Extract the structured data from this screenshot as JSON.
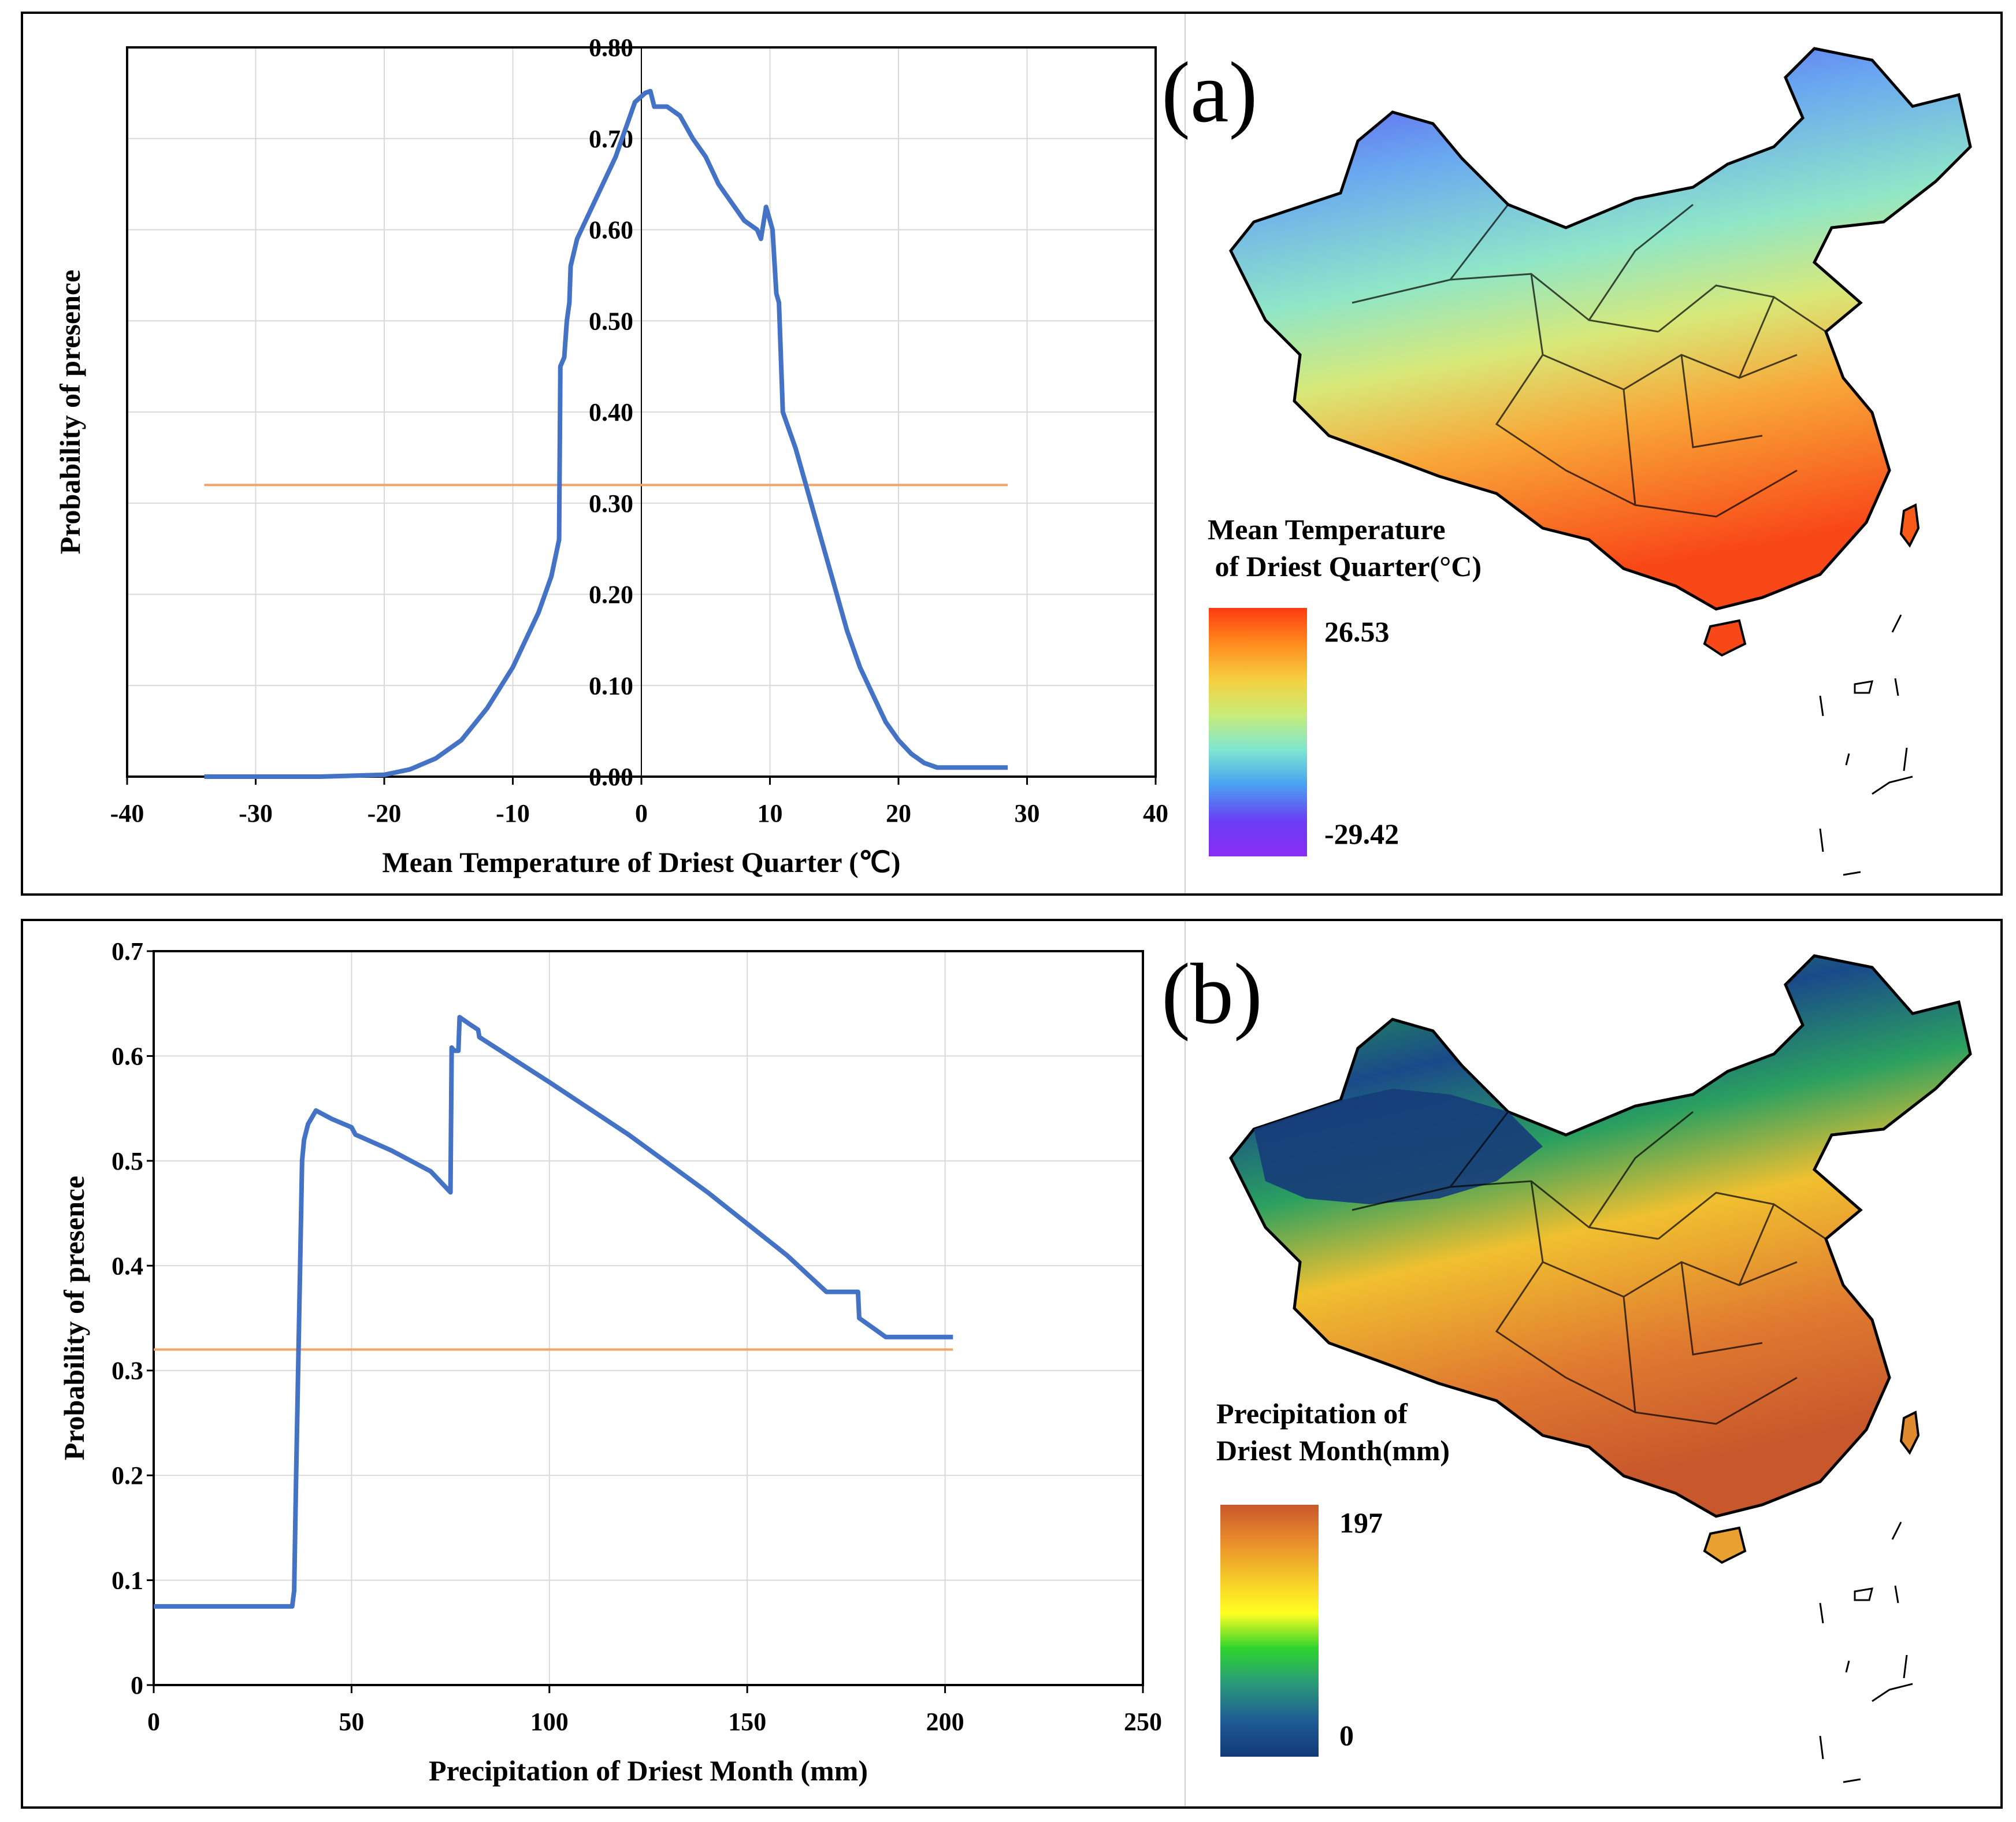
{
  "panels": [
    {
      "id": "a",
      "label": "(a)",
      "legend_title": "Mean Temperature\n of Driest Quarter(°C)",
      "legend_max": "26.53",
      "legend_min": "-29.42",
      "legend_colors": [
        "#ff3a10",
        "#ff8a1c",
        "#f5d040",
        "#c8ec78",
        "#7fe6d0",
        "#4aa2f0",
        "#6a3cf4",
        "#8a2cf2"
      ]
    },
    {
      "id": "b",
      "label": "(b)",
      "legend_title": "Precipitation of\nDriest Month(mm)",
      "legend_max": "197",
      "legend_min": "0",
      "legend_colors": [
        "#c8582c",
        "#e88a2c",
        "#f6c82a",
        "#ffff20",
        "#2ed42e",
        "#2a9a7a",
        "#1e5a94",
        "#123a78"
      ]
    }
  ],
  "chart_data": [
    {
      "type": "line",
      "xlabel": "Mean Temperature of Driest Quarter (℃)",
      "ylabel": "Probability of presence",
      "xlim": [
        -40,
        40
      ],
      "ylim": [
        0,
        0.8
      ],
      "x_ticks": [
        "-40",
        "-30",
        "-20",
        "-10",
        "0",
        "10",
        "20",
        "30",
        "40"
      ],
      "y_ticks": [
        "0.00",
        "0.10",
        "0.20",
        "0.30",
        "0.40",
        "0.50",
        "0.60",
        "0.70",
        "0.80"
      ],
      "y_axis_at_x": 0,
      "threshold": 0.32,
      "threshold_range": [
        -34,
        28.5
      ],
      "series": [
        {
          "name": "response",
          "color": "#4472c4",
          "points": [
            [
              -34,
              0
            ],
            [
              -25,
              0
            ],
            [
              -20,
              0.002
            ],
            [
              -18,
              0.008
            ],
            [
              -16,
              0.02
            ],
            [
              -14,
              0.04
            ],
            [
              -12,
              0.075
            ],
            [
              -10,
              0.12
            ],
            [
              -8,
              0.18
            ],
            [
              -7,
              0.22
            ],
            [
              -6.4,
              0.26
            ],
            [
              -6.3,
              0.45
            ],
            [
              -6,
              0.46
            ],
            [
              -5.8,
              0.5
            ],
            [
              -5.6,
              0.52
            ],
            [
              -5.5,
              0.56
            ],
            [
              -5,
              0.59
            ],
            [
              -4,
              0.62
            ],
            [
              -3,
              0.65
            ],
            [
              -2,
              0.68
            ],
            [
              -1.5,
              0.7
            ],
            [
              -1,
              0.72
            ],
            [
              -0.5,
              0.74
            ],
            [
              0.3,
              0.75
            ],
            [
              0.7,
              0.752
            ],
            [
              1,
              0.735
            ],
            [
              2,
              0.735
            ],
            [
              3,
              0.725
            ],
            [
              4,
              0.7
            ],
            [
              5,
              0.68
            ],
            [
              6,
              0.65
            ],
            [
              7,
              0.63
            ],
            [
              8,
              0.61
            ],
            [
              9,
              0.6
            ],
            [
              9.3,
              0.59
            ],
            [
              9.7,
              0.625
            ],
            [
              10.2,
              0.6
            ],
            [
              10.5,
              0.53
            ],
            [
              10.7,
              0.52
            ],
            [
              11,
              0.4
            ],
            [
              12,
              0.36
            ],
            [
              13,
              0.31
            ],
            [
              14,
              0.26
            ],
            [
              15,
              0.21
            ],
            [
              16,
              0.16
            ],
            [
              17,
              0.12
            ],
            [
              18,
              0.09
            ],
            [
              19,
              0.06
            ],
            [
              20,
              0.04
            ],
            [
              21,
              0.025
            ],
            [
              22,
              0.015
            ],
            [
              23,
              0.01
            ],
            [
              25,
              0.01
            ],
            [
              28.5,
              0.01
            ]
          ]
        }
      ]
    },
    {
      "type": "line",
      "xlabel": "Precipitation of Driest Month (mm)",
      "ylabel": "Probability of presence",
      "xlim": [
        0,
        250
      ],
      "ylim": [
        0,
        0.7
      ],
      "x_ticks": [
        "0",
        "50",
        "100",
        "150",
        "200",
        "250"
      ],
      "y_ticks": [
        "0",
        "0.1",
        "0.2",
        "0.3",
        "0.4",
        "0.5",
        "0.6",
        "0.7"
      ],
      "y_axis_at_x": 0,
      "threshold": 0.32,
      "threshold_range": [
        0,
        202
      ],
      "series": [
        {
          "name": "response",
          "color": "#4472c4",
          "points": [
            [
              0,
              0.075
            ],
            [
              35,
              0.075
            ],
            [
              35.5,
              0.09
            ],
            [
              36,
              0.2
            ],
            [
              37,
              0.4
            ],
            [
              37.5,
              0.5
            ],
            [
              38,
              0.52
            ],
            [
              39,
              0.535
            ],
            [
              41,
              0.548
            ],
            [
              45,
              0.54
            ],
            [
              50,
              0.532
            ],
            [
              51,
              0.525
            ],
            [
              60,
              0.51
            ],
            [
              70,
              0.49
            ],
            [
              75,
              0.47
            ],
            [
              75.3,
              0.608
            ],
            [
              76,
              0.605
            ],
            [
              77,
              0.605
            ],
            [
              77.3,
              0.637
            ],
            [
              80,
              0.63
            ],
            [
              82,
              0.625
            ],
            [
              82.3,
              0.618
            ],
            [
              100,
              0.575
            ],
            [
              120,
              0.525
            ],
            [
              140,
              0.47
            ],
            [
              160,
              0.41
            ],
            [
              170,
              0.375
            ],
            [
              178,
              0.375
            ],
            [
              178.3,
              0.35
            ],
            [
              185,
              0.332
            ],
            [
              202,
              0.332
            ]
          ]
        }
      ]
    }
  ]
}
